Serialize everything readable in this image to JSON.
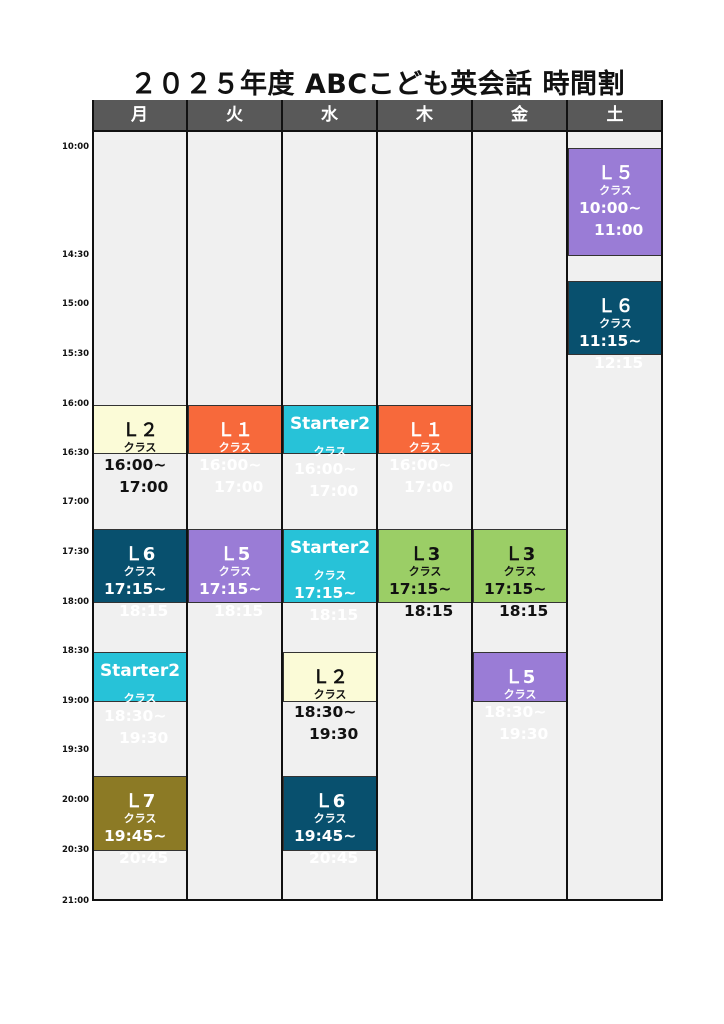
{
  "title": "２０２５年度 ABCこども英会話 時間割",
  "days": [
    "月",
    "火",
    "水",
    "木",
    "金",
    "土"
  ],
  "times": [
    "10:00",
    "14:30",
    "15:00",
    "15:30",
    "16:00",
    "16:30",
    "17:00",
    "17:30",
    "18:00",
    "18:30",
    "19:00",
    "19:30",
    "20:00",
    "20:30",
    "21:00"
  ],
  "colors": {
    "L1": "#f7693b",
    "L2": "#fbfbd7",
    "L3": "#9bce66",
    "L5": "#9a7cd6",
    "L6": "#08506e",
    "L7": "#8c7a25",
    "Starter2": "#27c2d8",
    "header": "#595959",
    "grid": "#f0f0f0"
  },
  "classes": [
    {
      "day": 0,
      "slot": 4,
      "level": "Ｌ２",
      "label": "クラス",
      "start": "16:00~",
      "end": "17:00",
      "color": "L2",
      "text": "#111111"
    },
    {
      "day": 0,
      "slot": 6,
      "level": "Ｌ6",
      "label": "クラス",
      "start": "17:15~",
      "end": "18:15",
      "color": "L6",
      "text": "#ffffff"
    },
    {
      "day": 0,
      "slot": 8,
      "level": "Starter2",
      "label": "クラス",
      "start": "18:30~",
      "end": "19:30",
      "color": "Starter2",
      "text": "#ffffff"
    },
    {
      "day": 0,
      "slot": 10,
      "level": "Ｌ7",
      "label": "クラス",
      "start": "19:45~",
      "end": "20:45",
      "color": "L7",
      "text": "#ffffff"
    },
    {
      "day": 1,
      "slot": 4,
      "level": "Ｌ１",
      "label": "クラス",
      "start": "16:00~",
      "end": "17:00",
      "color": "L1",
      "text": "#ffffff"
    },
    {
      "day": 1,
      "slot": 6,
      "level": "Ｌ5",
      "label": "クラス",
      "start": "17:15~",
      "end": "18:15",
      "color": "L5",
      "text": "#ffffff"
    },
    {
      "day": 2,
      "slot": 4,
      "level": "Starter2",
      "label": "クラス",
      "start": "16:00~",
      "end": "17:00",
      "color": "Starter2",
      "text": "#ffffff"
    },
    {
      "day": 2,
      "slot": 6,
      "level": "Starter2",
      "label": "クラス",
      "start": "17:15~",
      "end": "18:15",
      "color": "Starter2",
      "text": "#ffffff"
    },
    {
      "day": 2,
      "slot": 8,
      "level": "Ｌ２",
      "label": "クラス",
      "start": "18:30~",
      "end": "19:30",
      "color": "L2",
      "text": "#111111"
    },
    {
      "day": 2,
      "slot": 10,
      "level": "Ｌ6",
      "label": "クラス",
      "start": "19:45~",
      "end": "20:45",
      "color": "L6",
      "text": "#ffffff"
    },
    {
      "day": 3,
      "slot": 4,
      "level": "Ｌ１",
      "label": "クラス",
      "start": "16:00~",
      "end": "17:00",
      "color": "L1",
      "text": "#ffffff"
    },
    {
      "day": 3,
      "slot": 6,
      "level": "Ｌ3",
      "label": "クラス",
      "start": "17:15~",
      "end": "18:15",
      "color": "L3",
      "text": "#111111"
    },
    {
      "day": 4,
      "slot": 6,
      "level": "Ｌ3",
      "label": "クラス",
      "start": "17:15~",
      "end": "18:15",
      "color": "L3",
      "text": "#111111"
    },
    {
      "day": 4,
      "slot": 8,
      "level": "Ｌ5",
      "label": "クラス",
      "start": "18:30~",
      "end": "19:30",
      "color": "L5",
      "text": "#ffffff"
    },
    {
      "day": 5,
      "slot": 0,
      "level": "Ｌ５",
      "label": "クラス",
      "start": "10:00~",
      "end": "11:00",
      "color": "L5",
      "text": "#ffffff"
    },
    {
      "day": 5,
      "slot": 2,
      "level": "Ｌ６",
      "label": "クラス",
      "start": "11:15~",
      "end": "12:15",
      "color": "L6",
      "text": "#ffffff"
    }
  ]
}
